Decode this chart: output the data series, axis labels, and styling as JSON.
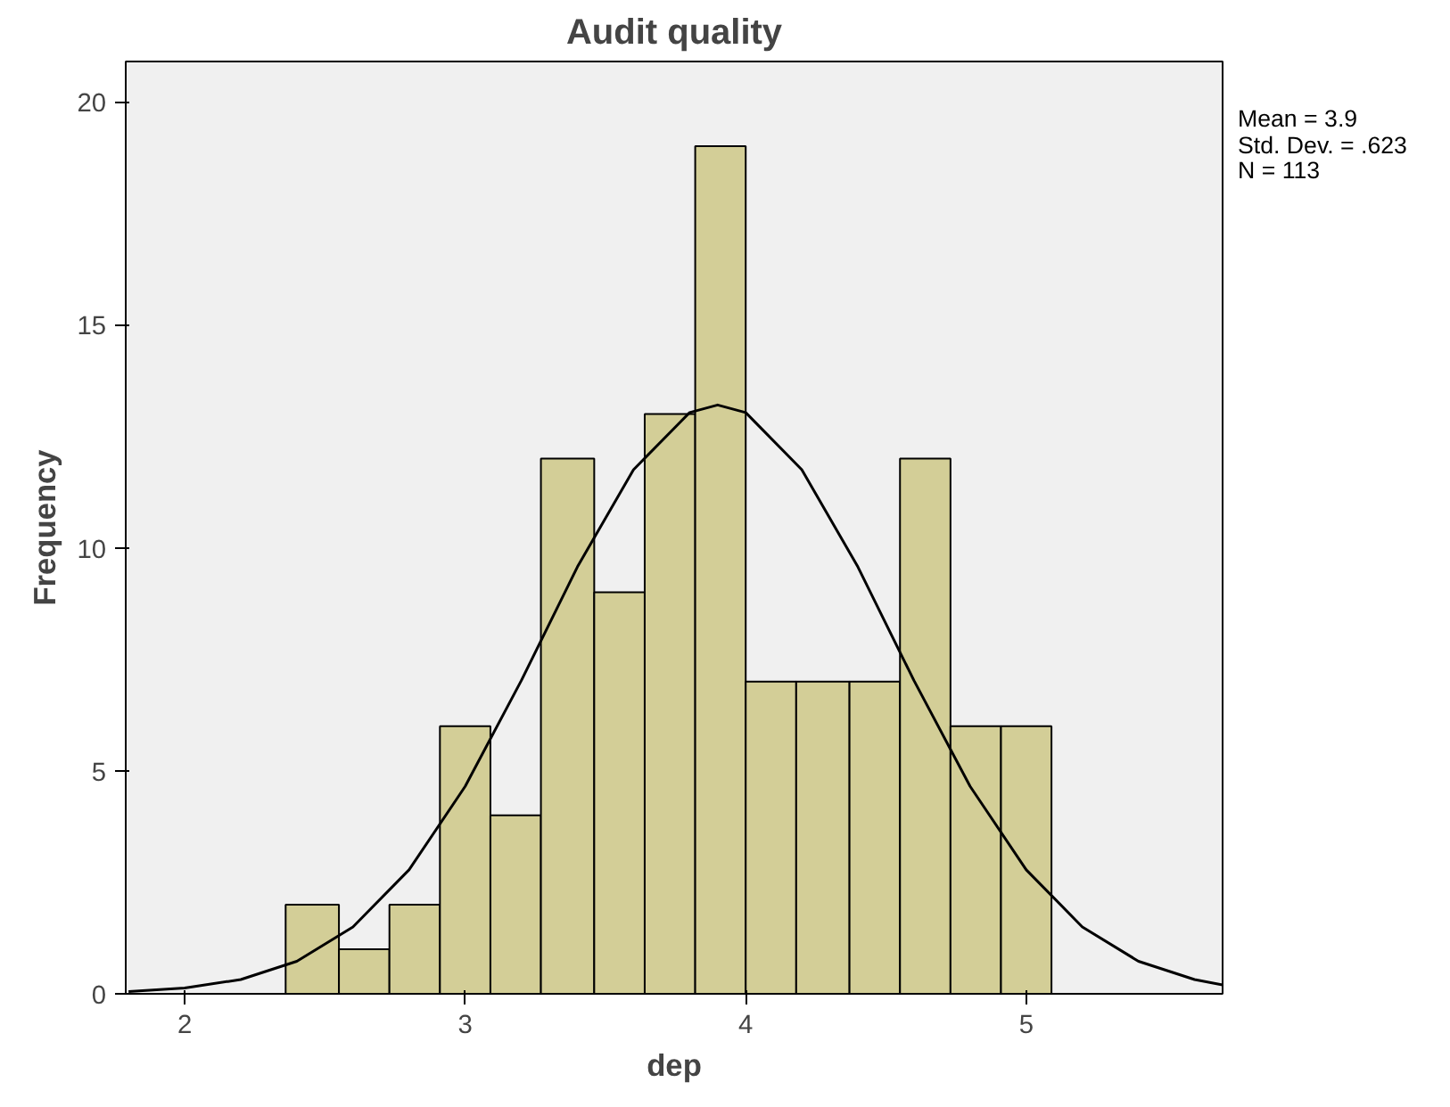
{
  "chart_data": {
    "type": "histogram",
    "title": "Audit quality",
    "xlabel": "dep",
    "ylabel": "Frequency",
    "bins": [
      2.36,
      2.55,
      2.73,
      2.91,
      3.09,
      3.27,
      3.46,
      3.64,
      3.82,
      4.0,
      4.18,
      4.37,
      4.55,
      4.73,
      4.91,
      5.09
    ],
    "values": [
      2,
      1,
      2,
      6,
      4,
      12,
      9,
      13,
      19,
      7,
      7,
      7,
      12,
      6,
      6
    ],
    "color": "#d3ce97",
    "series": [
      {
        "type": "line",
        "color": "#000000",
        "x": [
          1.8,
          2.0,
          2.2,
          2.4,
          2.6,
          2.8,
          3.0,
          3.2,
          3.4,
          3.6,
          3.8,
          3.9,
          4.0,
          4.2,
          4.4,
          4.6,
          4.8,
          5.0,
          5.2,
          5.4,
          5.6,
          5.7
        ],
        "values": [
          0.05,
          0.13,
          0.32,
          0.73,
          1.5,
          2.78,
          4.65,
          7.02,
          9.57,
          11.75,
          13.03,
          13.2,
          13.03,
          11.75,
          9.57,
          7.02,
          4.65,
          2.78,
          1.5,
          0.73,
          0.32,
          0.2
        ]
      }
    ],
    "xlim": [
      1.79,
      5.7
    ],
    "ylim": [
      0,
      20.9
    ],
    "xticks": [
      2,
      3,
      4,
      5
    ],
    "yticks": [
      0,
      5,
      10,
      15,
      20
    ],
    "grid": false,
    "annotations": [
      "Mean = 3.9",
      "Std. Dev. = .623",
      "N = 113"
    ]
  }
}
